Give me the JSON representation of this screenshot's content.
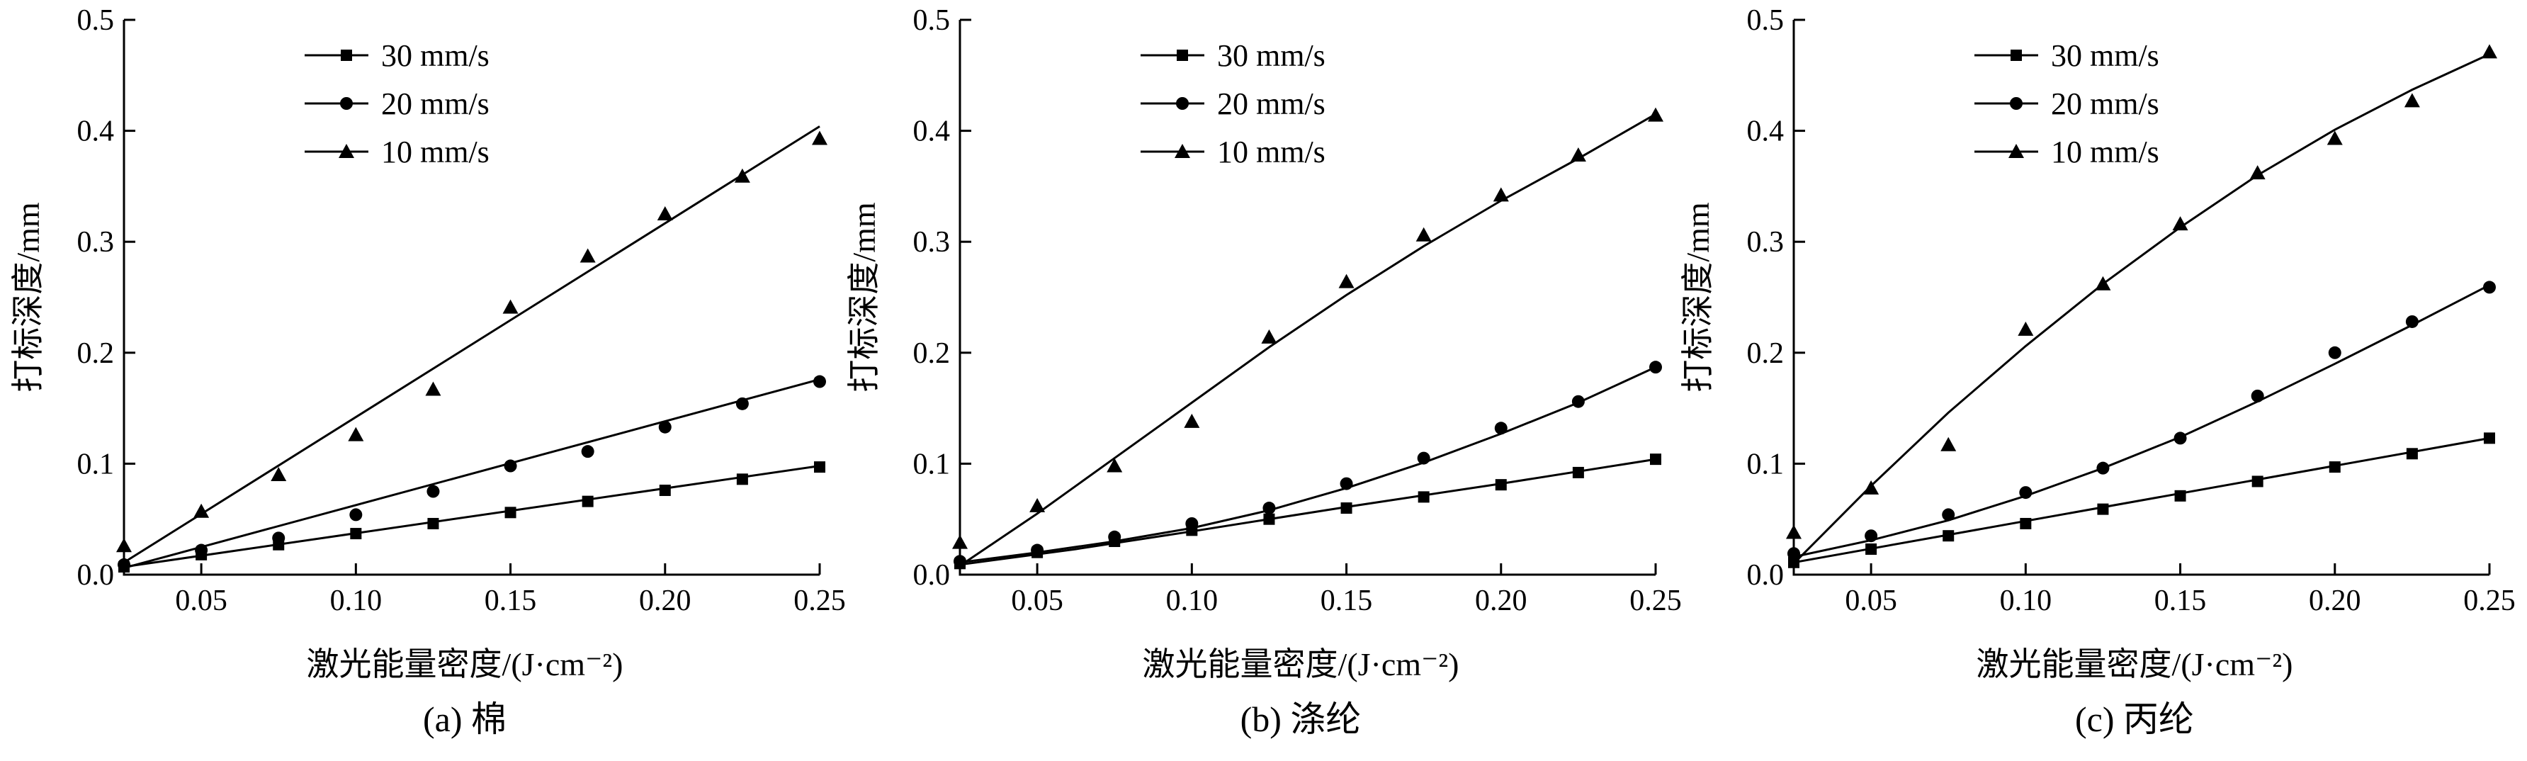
{
  "chart_data": [
    {
      "type": "scatter",
      "caption": "(a) 棉",
      "xlabel": "激光能量密度/(J·cm⁻²)",
      "ylabel": "打标深度/mm",
      "xlim": [
        0.025,
        0.25
      ],
      "ylim": [
        0,
        0.5
      ],
      "xticks": [
        "0.05",
        "0.10",
        "0.15",
        "0.20",
        "0.25"
      ],
      "yticks": [
        "0.0",
        "0.1",
        "0.2",
        "0.3",
        "0.4",
        "0.5"
      ],
      "legend_position": "top-left",
      "grid": false,
      "x": [
        0.025,
        0.05,
        0.075,
        0.1,
        0.125,
        0.15,
        0.175,
        0.2,
        0.225,
        0.25
      ],
      "series": [
        {
          "name": "30 mm/s",
          "marker": "square",
          "values": [
            0.007,
            0.018,
            0.027,
            0.037,
            0.046,
            0.056,
            0.066,
            0.076,
            0.086,
            0.097
          ],
          "fit": [
            [
              0.025,
              0.007
            ],
            [
              0.25,
              0.098
            ]
          ]
        },
        {
          "name": "20 mm/s",
          "marker": "circle",
          "values": [
            0.009,
            0.022,
            0.033,
            0.054,
            0.075,
            0.098,
            0.111,
            0.133,
            0.154,
            0.174
          ],
          "fit": [
            [
              0.025,
              0.006
            ],
            [
              0.25,
              0.176
            ]
          ]
        },
        {
          "name": "10 mm/s",
          "marker": "triangle",
          "values": [
            0.026,
            0.057,
            0.09,
            0.126,
            0.167,
            0.241,
            0.287,
            0.325,
            0.359,
            0.393
          ],
          "fit": [
            [
              0.025,
              0.011
            ],
            [
              0.25,
              0.404
            ]
          ]
        }
      ]
    },
    {
      "type": "scatter",
      "caption": "(b) 涤纶",
      "xlabel": "激光能量密度/(J·cm⁻²)",
      "ylabel": "打标深度/mm",
      "xlim": [
        0.025,
        0.25
      ],
      "ylim": [
        0,
        0.5
      ],
      "xticks": [
        "0.05",
        "0.10",
        "0.15",
        "0.20",
        "0.25"
      ],
      "yticks": [
        "0.0",
        "0.1",
        "0.2",
        "0.3",
        "0.4",
        "0.5"
      ],
      "legend_position": "top-center",
      "grid": false,
      "x": [
        0.025,
        0.05,
        0.075,
        0.1,
        0.125,
        0.15,
        0.175,
        0.2,
        0.225,
        0.25
      ],
      "series": [
        {
          "name": "30 mm/s",
          "marker": "square",
          "values": [
            0.01,
            0.02,
            0.03,
            0.04,
            0.05,
            0.06,
            0.07,
            0.081,
            0.092,
            0.104
          ],
          "fit": [
            [
              0.025,
              0.009
            ],
            [
              0.0625,
              0.023
            ],
            [
              0.1,
              0.039
            ],
            [
              0.15,
              0.061
            ],
            [
              0.2,
              0.082
            ],
            [
              0.25,
              0.104
            ]
          ]
        },
        {
          "name": "20 mm/s",
          "marker": "circle",
          "values": [
            0.012,
            0.022,
            0.034,
            0.046,
            0.06,
            0.082,
            0.105,
            0.132,
            0.156,
            0.187
          ],
          "fit": [
            [
              0.025,
              0.011
            ],
            [
              0.05,
              0.02
            ],
            [
              0.075,
              0.03
            ],
            [
              0.1,
              0.042
            ],
            [
              0.125,
              0.058
            ],
            [
              0.15,
              0.078
            ],
            [
              0.175,
              0.101
            ],
            [
              0.2,
              0.127
            ],
            [
              0.225,
              0.155
            ],
            [
              0.25,
              0.187
            ]
          ]
        },
        {
          "name": "10 mm/s",
          "marker": "triangle",
          "values": [
            0.029,
            0.062,
            0.098,
            0.138,
            0.214,
            0.264,
            0.306,
            0.342,
            0.378,
            0.414
          ],
          "fit": [
            [
              0.025,
              0.008
            ],
            [
              0.05,
              0.055
            ],
            [
              0.075,
              0.105
            ],
            [
              0.1,
              0.155
            ],
            [
              0.125,
              0.205
            ],
            [
              0.15,
              0.252
            ],
            [
              0.175,
              0.296
            ],
            [
              0.2,
              0.337
            ],
            [
              0.225,
              0.375
            ],
            [
              0.25,
              0.415
            ]
          ]
        }
      ]
    },
    {
      "type": "scatter",
      "caption": "(c) 丙纶",
      "xlabel": "激光能量密度/(J·cm⁻²)",
      "ylabel": "打标深度/mm",
      "xlim": [
        0.025,
        0.25
      ],
      "ylim": [
        0,
        0.5
      ],
      "xticks": [
        "0.05",
        "0.10",
        "0.15",
        "0.20",
        "0.25"
      ],
      "yticks": [
        "0.0",
        "0.1",
        "0.2",
        "0.3",
        "0.4",
        "0.5"
      ],
      "legend_position": "top-left",
      "grid": false,
      "x": [
        0.025,
        0.05,
        0.075,
        0.1,
        0.125,
        0.15,
        0.175,
        0.2,
        0.225,
        0.25
      ],
      "series": [
        {
          "name": "30 mm/s",
          "marker": "square",
          "values": [
            0.011,
            0.023,
            0.035,
            0.046,
            0.059,
            0.071,
            0.084,
            0.097,
            0.109,
            0.123
          ],
          "fit": [
            [
              0.025,
              0.011
            ],
            [
              0.25,
              0.123
            ]
          ]
        },
        {
          "name": "20 mm/s",
          "marker": "circle",
          "values": [
            0.019,
            0.035,
            0.054,
            0.074,
            0.096,
            0.123,
            0.161,
            0.2,
            0.228,
            0.259
          ],
          "fit": [
            [
              0.025,
              0.016
            ],
            [
              0.05,
              0.031
            ],
            [
              0.075,
              0.049
            ],
            [
              0.1,
              0.071
            ],
            [
              0.125,
              0.096
            ],
            [
              0.15,
              0.124
            ],
            [
              0.175,
              0.156
            ],
            [
              0.2,
              0.19
            ],
            [
              0.225,
              0.225
            ],
            [
              0.25,
              0.261
            ]
          ]
        },
        {
          "name": "10 mm/s",
          "marker": "triangle",
          "values": [
            0.038,
            0.078,
            0.117,
            0.221,
            0.262,
            0.316,
            0.362,
            0.393,
            0.427,
            0.471
          ],
          "fit": [
            [
              0.025,
              0.01
            ],
            [
              0.05,
              0.08
            ],
            [
              0.075,
              0.146
            ],
            [
              0.1,
              0.206
            ],
            [
              0.125,
              0.262
            ],
            [
              0.15,
              0.313
            ],
            [
              0.175,
              0.36
            ],
            [
              0.2,
              0.401
            ],
            [
              0.225,
              0.437
            ],
            [
              0.25,
              0.469
            ]
          ]
        }
      ]
    }
  ]
}
